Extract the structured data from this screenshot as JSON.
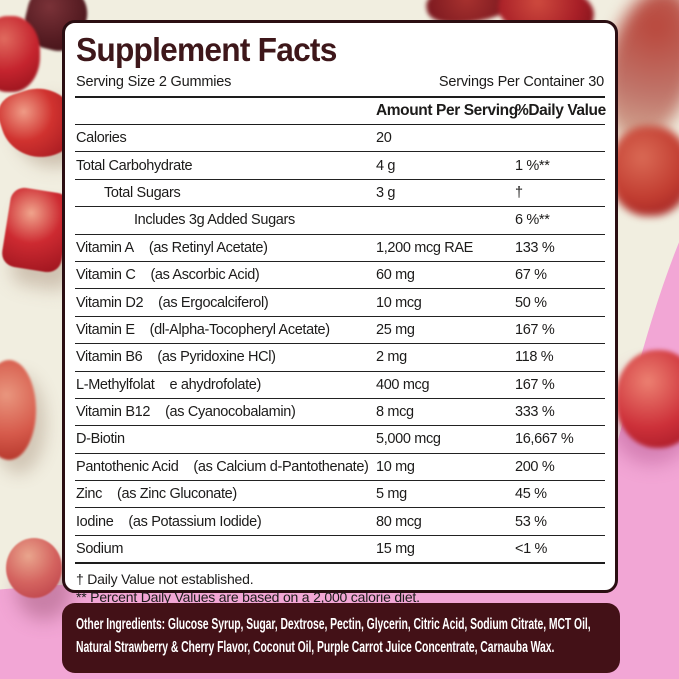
{
  "palette": {
    "background_cream": "#f1eee0",
    "background_pink": "#f2a6d5",
    "title_maroon": "#3e171a",
    "panel_border": "#2b0e12",
    "ingredients_box": "#431117",
    "gummy_red": "#c5242e"
  },
  "panel": {
    "title": "Supplement Facts",
    "serving_size": "Serving Size 2 Gummies",
    "servings_per_container": "Servings Per Container 30",
    "columns": {
      "amount": "Amount Per Serving",
      "daily_value": "%Daily Value"
    },
    "rows": [
      {
        "name": "Calories",
        "detail": "",
        "amount": "20",
        "dv": "",
        "indent": 0
      },
      {
        "name": "Total Carbohydrate",
        "detail": "",
        "amount": "4 g",
        "dv": "1 %**",
        "indent": 0
      },
      {
        "name": "Total Sugars",
        "detail": "",
        "amount": "3 g",
        "dv": "†",
        "indent": 1
      },
      {
        "name": "Includes 3g Added Sugars",
        "detail": "",
        "amount": "",
        "dv": "6 %**",
        "indent": 2
      },
      {
        "name": "Vitamin A",
        "detail": "(as Retinyl Acetate)",
        "amount": "1,200 mcg RAE",
        "dv": "133 %",
        "indent": 0
      },
      {
        "name": "Vitamin C",
        "detail": "(as Ascorbic Acid)",
        "amount": "60 mg",
        "dv": "67 %",
        "indent": 0
      },
      {
        "name": "Vitamin D2",
        "detail": "(as Ergocalciferol)",
        "amount": "10 mcg",
        "dv": "50 %",
        "indent": 0
      },
      {
        "name": "Vitamin E",
        "detail": "(dl-Alpha-Tocopheryl Acetate)",
        "amount": "25 mg",
        "dv": "167 %",
        "indent": 0
      },
      {
        "name": "Vitamin B6",
        "detail": "(as Pyridoxine HCl)",
        "amount": "2 mg",
        "dv": "118 %",
        "indent": 0
      },
      {
        "name": "L-Methylfolat",
        "detail": "e  ahydrofolate)",
        "amount": "400 mcg",
        "dv": "167 %",
        "indent": 0
      },
      {
        "name": "Vitamin B12",
        "detail": "(as Cyanocobalamin)",
        "amount": "8 mcg",
        "dv": "333 %",
        "indent": 0
      },
      {
        "name": "D-Biotin",
        "detail": "",
        "amount": "5,000 mcg",
        "dv": "16,667 %",
        "indent": 0
      },
      {
        "name": "Pantothenic Acid",
        "detail": "(as Calcium d-Pantothenate)",
        "amount": "10 mg",
        "dv": "200 %",
        "indent": 0
      },
      {
        "name": "Zinc",
        "detail": "(as Zinc Gluconate)",
        "amount": "5 mg",
        "dv": "45 %",
        "indent": 0
      },
      {
        "name": "Iodine",
        "detail": "(as Potassium Iodide)",
        "amount": "80 mcg",
        "dv": "53 %",
        "indent": 0
      },
      {
        "name": "Sodium",
        "detail": "",
        "amount": "15 mg",
        "dv": "<1 %",
        "indent": 0
      }
    ],
    "footnotes": [
      "† Daily Value not established.",
      "** Percent Daily Values are based on a 2,000 calorie diet."
    ]
  },
  "other_ingredients": {
    "label": "Other Ingredients:",
    "text": "Glucose Syrup, Sugar, Dextrose, Pectin, Glycerin, Citric Acid, Sodium Citrate, MCT Oil, Natural Strawberry & Cherry Flavor, Coconut Oil, Purple Carrot Juice Concentrate, Carnauba Wax."
  }
}
